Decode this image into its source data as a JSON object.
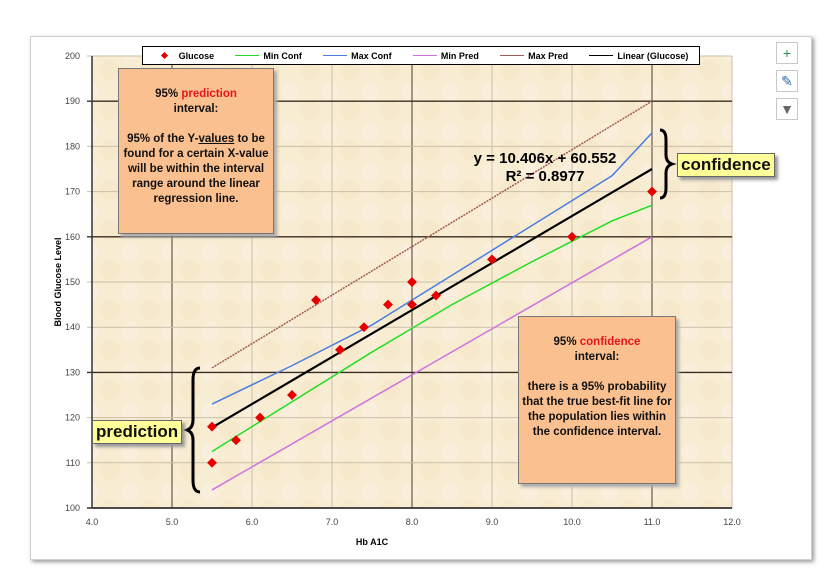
{
  "chart_data": {
    "type": "scatter",
    "xlabel": "Hb A1C",
    "ylabel": "Blood Glucose Level",
    "xlim": [
      4.0,
      12.0
    ],
    "ylim": [
      100,
      200
    ],
    "xticks": [
      "4.0",
      "5.0",
      "6.0",
      "7.0",
      "8.0",
      "9.0",
      "10.0",
      "11.0",
      "12.0"
    ],
    "yticks": [
      "100",
      "110",
      "120",
      "130",
      "140",
      "150",
      "160",
      "170",
      "180",
      "190",
      "200"
    ],
    "grid": true,
    "legend_position": "top",
    "series": [
      {
        "name": "Glucose",
        "kind": "points",
        "color": "#e60000",
        "x": [
          5.5,
          5.5,
          5.8,
          6.1,
          6.5,
          6.8,
          7.1,
          7.4,
          7.7,
          8.0,
          8.0,
          8.3,
          9.0,
          10.0,
          11.0
        ],
        "y": [
          118,
          110,
          115,
          120,
          125,
          146,
          135,
          140,
          145,
          150,
          145,
          147,
          155,
          160,
          170
        ]
      },
      {
        "name": "Min Conf",
        "kind": "line",
        "color": "#22dd22",
        "x": [
          5.5,
          6.5,
          7.5,
          8.5,
          9.5,
          10.5,
          11.0
        ],
        "y": [
          112.5,
          123.5,
          134.5,
          145.0,
          154.5,
          163.5,
          167.0
        ]
      },
      {
        "name": "Max Conf",
        "kind": "line",
        "color": "#4a7fe0",
        "x": [
          5.5,
          6.5,
          7.5,
          8.5,
          9.5,
          10.5,
          11.0
        ],
        "y": [
          123.0,
          131.5,
          140.5,
          151.5,
          162.5,
          173.5,
          183.0
        ]
      },
      {
        "name": "Min Pred",
        "kind": "line",
        "color": "#d070e0",
        "x": [
          5.5,
          11.0
        ],
        "y": [
          104,
          160
        ]
      },
      {
        "name": "Max Pred",
        "kind": "line",
        "color": "#a05a50",
        "dashed": true,
        "x": [
          5.5,
          11.0
        ],
        "y": [
          131,
          190
        ]
      },
      {
        "name": "Linear (Glucose)",
        "kind": "line",
        "color": "#000000",
        "x": [
          5.5,
          11.0
        ],
        "y": [
          117.8,
          175.0
        ]
      }
    ],
    "trendline_equation": "y = 10.406x + 60.552",
    "r_squared": "R² = 0.8977"
  },
  "annotations": {
    "prediction_box": {
      "pre": "95% ",
      "hl": "prediction",
      "line2": "interval:",
      "body": [
        "95% of the Y-",
        "values",
        " to be found for a certain X-value will be within the interval range around the linear regression line."
      ]
    },
    "confidence_box": {
      "pre": "95% ",
      "hl": "confidence",
      "line2": "interval:",
      "body": "there is a 95% probability that the true best-fit line for the population lies within the confidence interval."
    },
    "prediction_tag": "prediction",
    "confidence_tag": "confidence"
  },
  "toolbar": {
    "icons": [
      "plus-icon",
      "brush-icon",
      "filter-icon"
    ]
  }
}
